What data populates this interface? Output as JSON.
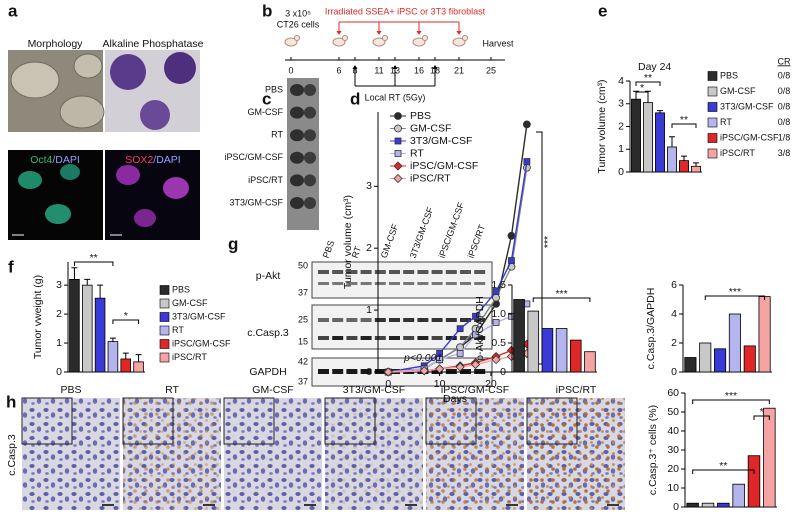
{
  "panel_labels": [
    "a",
    "b",
    "c",
    "d",
    "e",
    "f",
    "g",
    "h"
  ],
  "a": {
    "images": [
      "Morphology",
      "Alkaline Phosphatase"
    ],
    "stains": [
      [
        "Oct4",
        "/DAPI"
      ],
      [
        "SOX2",
        "/DAPI"
      ]
    ]
  },
  "b": {
    "cells_count": "3 x10⁵",
    "cells": "CT26 cells",
    "injection": "Irradiated SSEA+ iPSC or 3T3 fibroblast",
    "harvest": "Harvest",
    "radiation": "Local RT (5Gy)",
    "days": [
      0,
      6,
      8,
      11,
      13,
      16,
      18,
      21,
      25
    ]
  },
  "c": {
    "groups": [
      "PBS",
      "GM-CSF",
      "RT",
      "iPSC/GM-CSF",
      "iPSC/RT",
      "3T3/GM-CSF"
    ]
  },
  "g_blot": {
    "lanes": [
      "PBS",
      "RT",
      "GM-CSF",
      "3T3/GM-CSF",
      "iPSC/GM-CSF",
      "iPSC/RT"
    ],
    "proteins": [
      "p-Akt",
      "c.Casp.3",
      "GAPDH"
    ],
    "markers": [
      50,
      37,
      25,
      15,
      42,
      37
    ]
  },
  "h_images": {
    "groups": [
      "PBS",
      "RT",
      "GM-CSF",
      "3T3/GM-CSF",
      "iPSC/GM-CSF",
      "iPSC/RT"
    ],
    "stain": "c.Casp.3"
  },
  "chart_data": [
    {
      "type": "line",
      "x": [
        0,
        7,
        10,
        14,
        17,
        21,
        24,
        27
      ],
      "xlim": [
        -2,
        28
      ],
      "xticks": [
        0,
        10,
        20
      ],
      "ylim": [
        0,
        4.2
      ],
      "yticks": [
        0,
        1,
        2,
        3
      ],
      "xlabel": "Days",
      "ylabel": "Tumor volume (cm³)",
      "legend": "upper left",
      "annotations": [
        "p<0.001",
        "***"
      ],
      "series": [
        {
          "name": "PBS",
          "color": "#2b2b2b",
          "marker": "circle",
          "values": [
            0,
            0.05,
            0.2,
            0.4,
            0.6,
            1.1,
            2.2,
            4.0
          ]
        },
        {
          "name": "GM-CSF",
          "color": "#c8c8c8",
          "marker": "circle",
          "values": [
            0,
            0.05,
            0.2,
            0.4,
            0.7,
            1.2,
            1.7,
            3.3
          ]
        },
        {
          "name": "3T3/GM-CSF",
          "color": "#3a3ad6",
          "marker": "square",
          "values": [
            0,
            0.1,
            0.3,
            0.7,
            0.9,
            1.3,
            1.8,
            3.4
          ]
        },
        {
          "name": "RT",
          "color": "#b4b4ee",
          "marker": "square",
          "values": [
            0,
            0.05,
            0.2,
            0.3,
            0.6,
            0.8,
            0.9,
            1.1
          ]
        },
        {
          "name": "iPSC/GM-CSF",
          "color": "#e02727",
          "marker": "diamond",
          "values": [
            0,
            0.02,
            0.05,
            0.1,
            0.15,
            0.25,
            0.35,
            0.45
          ]
        },
        {
          "name": "iPSC/RT",
          "color": "#f5a3a3",
          "marker": "diamond",
          "values": [
            0,
            0.02,
            0.05,
            0.08,
            0.12,
            0.2,
            0.25,
            0.3
          ]
        }
      ]
    },
    {
      "type": "bar",
      "title": "Day 24",
      "ylabel": "Tumor volume (cm³)",
      "ylim": [
        0,
        4
      ],
      "yticks": [
        0,
        1,
        2,
        3,
        4
      ],
      "legend": "right",
      "cr_header": "CR",
      "annotations": [
        "**",
        "*",
        "**"
      ],
      "series": [
        {
          "name": "PBS",
          "color": "#2b2b2b",
          "values": [
            3.2
          ],
          "errors": [
            0.35
          ],
          "cr": "0/8"
        },
        {
          "name": "GM-CSF",
          "color": "#c8c8c8",
          "values": [
            3.05
          ],
          "errors": [
            0.5
          ],
          "cr": "0/8"
        },
        {
          "name": "3T3/GM-CSF",
          "color": "#3a3ad6",
          "values": [
            2.6
          ],
          "errors": [
            0.1
          ],
          "cr": "0/8"
        },
        {
          "name": "RT",
          "color": "#b4b4ee",
          "values": [
            1.1
          ],
          "errors": [
            0.45
          ],
          "cr": "0/8"
        },
        {
          "name": "iPSC/GM-CSF",
          "color": "#e02727",
          "values": [
            0.5
          ],
          "errors": [
            0.2
          ],
          "cr": "1/8"
        },
        {
          "name": "iPSC/RT",
          "color": "#f5a3a3",
          "values": [
            0.25
          ],
          "errors": [
            0.15
          ],
          "cr": "3/8"
        }
      ]
    },
    {
      "type": "bar",
      "ylabel": "Tumor vweight (g)",
      "ylim": [
        0,
        3.8
      ],
      "yticks": [
        0,
        1,
        2,
        3
      ],
      "legend": "right",
      "annotations": [
        "**",
        "*"
      ],
      "series": [
        {
          "name": "PBS",
          "color": "#2b2b2b",
          "values": [
            3.2
          ],
          "errors": [
            0.4
          ]
        },
        {
          "name": "GM-CSF",
          "color": "#c8c8c8",
          "values": [
            3.0
          ],
          "errors": [
            0.2
          ]
        },
        {
          "name": "3T3/GM-CSF",
          "color": "#3a3ad6",
          "values": [
            2.55
          ],
          "errors": [
            0.45
          ]
        },
        {
          "name": "RT",
          "color": "#b4b4ee",
          "values": [
            1.05
          ],
          "errors": [
            0.12
          ]
        },
        {
          "name": "iPSC/GM-CSF",
          "color": "#e02727",
          "values": [
            0.45
          ],
          "errors": [
            0.2
          ]
        },
        {
          "name": "iPSC/RT",
          "color": "#f5a3a3",
          "values": [
            0.35
          ],
          "errors": [
            0.25
          ]
        }
      ]
    },
    {
      "type": "bar",
      "ylabel": "p-Akt/GAPDH",
      "ylim": [
        0,
        1.5
      ],
      "yticks": [
        0,
        0.5,
        {
          "value": 1,
          "label": "1.0"
        },
        1.5
      ],
      "annotations": [
        "***"
      ],
      "series": [
        {
          "name": "PBS",
          "color": "#2b2b2b",
          "values": [
            1.25
          ]
        },
        {
          "name": "GM-CSF",
          "color": "#c8c8c8",
          "values": [
            1.05
          ]
        },
        {
          "name": "3T3/GM-CSF",
          "color": "#3a3ad6",
          "values": [
            0.75
          ]
        },
        {
          "name": "RT",
          "color": "#b4b4ee",
          "values": [
            0.75
          ]
        },
        {
          "name": "iPSC/GM-CSF",
          "color": "#e02727",
          "values": [
            0.55
          ]
        },
        {
          "name": "iPSC/RT",
          "color": "#f5a3a3",
          "values": [
            0.35
          ]
        }
      ]
    },
    {
      "type": "bar",
      "ylabel": "c.Casp.3/GAPDH",
      "ylim": [
        0,
        6
      ],
      "yticks": [
        0,
        2,
        4,
        6
      ],
      "annotations": [
        "***"
      ],
      "series": [
        {
          "name": "PBS",
          "color": "#2b2b2b",
          "values": [
            1.0
          ]
        },
        {
          "name": "GM-CSF",
          "color": "#c8c8c8",
          "values": [
            2.0
          ]
        },
        {
          "name": "3T3/GM-CSF",
          "color": "#3a3ad6",
          "values": [
            1.6
          ]
        },
        {
          "name": "RT",
          "color": "#b4b4ee",
          "values": [
            4.0
          ]
        },
        {
          "name": "iPSC/GM-CSF",
          "color": "#e02727",
          "values": [
            1.8
          ]
        },
        {
          "name": "iPSC/RT",
          "color": "#f5a3a3",
          "values": [
            5.2
          ]
        }
      ]
    },
    {
      "type": "bar",
      "ylabel": "c.Casp.3⁺ cells (%)",
      "ylim": [
        0,
        60
      ],
      "yticks": [
        0,
        10,
        20,
        30,
        40,
        50,
        60
      ],
      "annotations": [
        "***",
        "**",
        "*"
      ],
      "series": [
        {
          "name": "PBS",
          "color": "#2b2b2b",
          "values": [
            2
          ]
        },
        {
          "name": "GM-CSF",
          "color": "#c8c8c8",
          "values": [
            2
          ]
        },
        {
          "name": "3T3/GM-CSF",
          "color": "#3a3ad6",
          "values": [
            2
          ]
        },
        {
          "name": "RT",
          "color": "#b4b4ee",
          "values": [
            12
          ]
        },
        {
          "name": "iPSC/GM-CSF",
          "color": "#e02727",
          "values": [
            27
          ]
        },
        {
          "name": "iPSC/RT",
          "color": "#f5a3a3",
          "values": [
            52
          ]
        }
      ]
    }
  ]
}
